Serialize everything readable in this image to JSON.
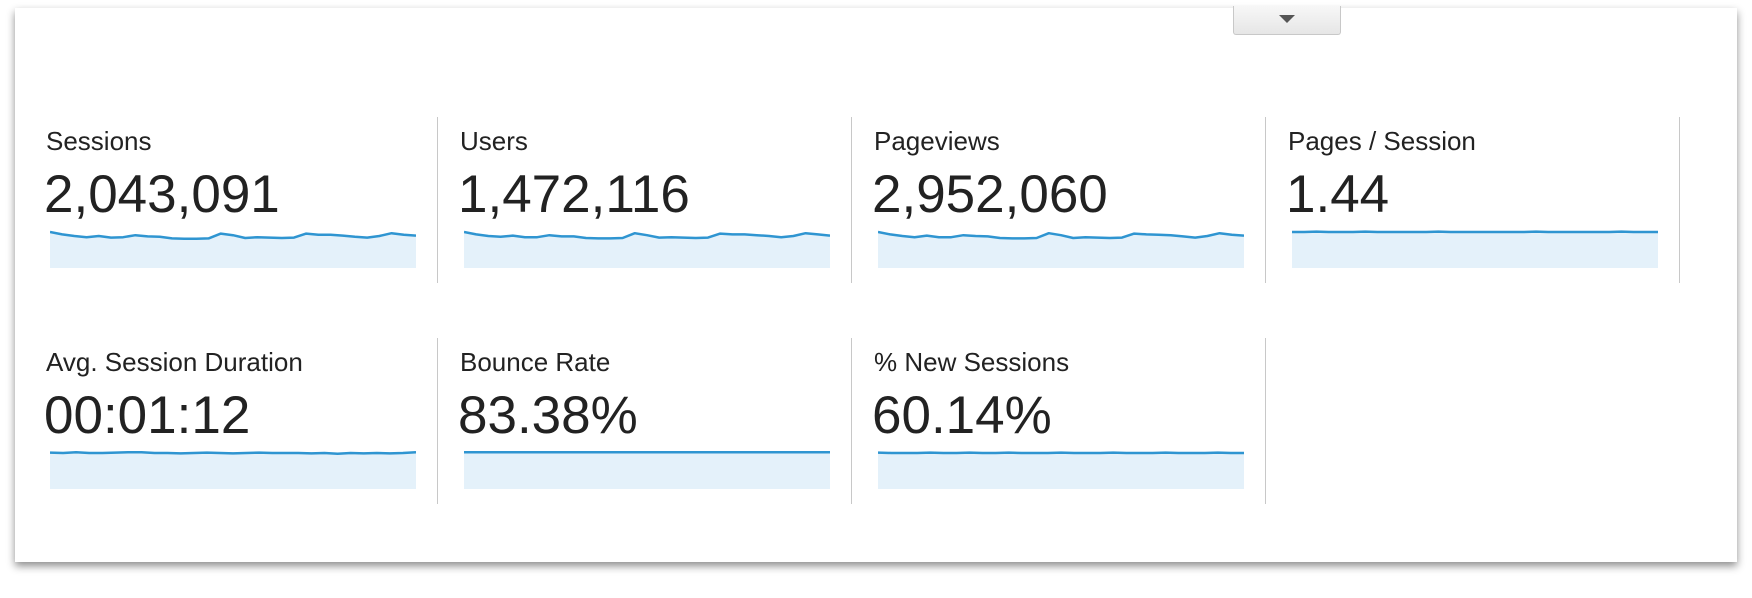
{
  "metrics": [
    {
      "label": "Sessions",
      "value": "2,043,091",
      "sparkline": [
        90,
        84,
        80,
        77,
        80,
        76,
        77,
        82,
        79,
        78,
        74,
        73,
        73,
        74,
        86,
        82,
        75,
        77,
        76,
        75,
        76,
        86,
        83,
        83,
        81,
        78,
        76,
        80,
        87,
        83,
        81
      ]
    },
    {
      "label": "Users",
      "value": "1,472,116",
      "sparkline": [
        90,
        84,
        80,
        78,
        81,
        77,
        77,
        82,
        79,
        79,
        75,
        74,
        74,
        75,
        87,
        82,
        76,
        77,
        76,
        75,
        76,
        86,
        84,
        84,
        82,
        80,
        77,
        80,
        87,
        84,
        81
      ]
    },
    {
      "label": "Pageviews",
      "value": "2,952,060",
      "sparkline": [
        90,
        84,
        80,
        77,
        81,
        77,
        77,
        82,
        80,
        79,
        75,
        74,
        74,
        75,
        87,
        82,
        75,
        77,
        76,
        75,
        76,
        86,
        84,
        83,
        82,
        79,
        76,
        80,
        87,
        83,
        81
      ]
    },
    {
      "label": "Pages / Session",
      "value": "1.44",
      "sparkline": [
        90,
        90,
        91,
        90,
        90,
        90,
        91,
        90,
        90,
        90,
        90,
        90,
        91,
        90,
        90,
        90,
        90,
        90,
        90,
        90,
        91,
        90,
        90,
        90,
        90,
        90,
        90,
        91,
        90,
        90,
        90
      ]
    },
    {
      "label": "Avg. Session Duration",
      "value": "00:01:12",
      "sparkline": [
        91,
        90,
        92,
        90,
        90,
        91,
        92,
        92,
        90,
        90,
        89,
        90,
        91,
        90,
        89,
        90,
        91,
        90,
        90,
        90,
        89,
        90,
        88,
        90,
        89,
        90,
        89,
        90,
        92
      ]
    },
    {
      "label": "Bounce Rate",
      "value": "83.38%",
      "sparkline": [
        92,
        92,
        92,
        92,
        92,
        92,
        92,
        92,
        92,
        92,
        92,
        92,
        92,
        92,
        92,
        92,
        92,
        92,
        92,
        92,
        92,
        92,
        92,
        92,
        92,
        92,
        92,
        92,
        92
      ]
    },
    {
      "label": "% New Sessions",
      "value": "60.14%",
      "sparkline": [
        91,
        90,
        90,
        90,
        91,
        90,
        90,
        91,
        90,
        90,
        91,
        90,
        90,
        90,
        91,
        90,
        90,
        90,
        91,
        90,
        90,
        90,
        91,
        90,
        90,
        90,
        91,
        90,
        90
      ]
    }
  ]
}
